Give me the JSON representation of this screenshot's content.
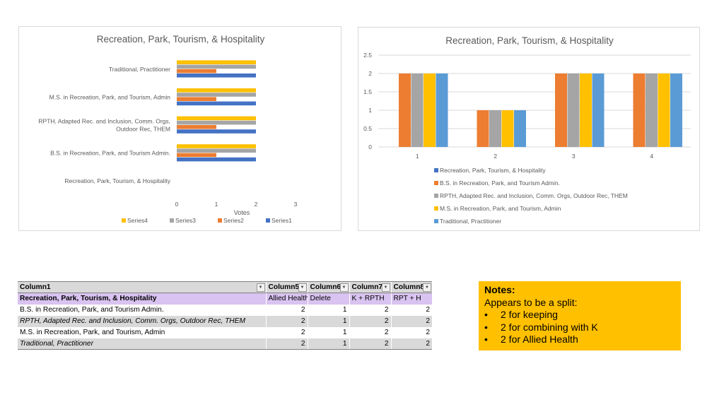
{
  "chart_data": [
    {
      "type": "bar",
      "orientation": "horizontal",
      "title": "Recreation, Park, Tourism, & Hospitality",
      "categories": [
        "Recreation, Park, Tourism, & Hospitality",
        "B.S. in Recreation, Park, and Tourism Admin.",
        "RPTH, Adapted Rec. and Inclusion, Comm. Orgs, Outdoor Rec, THEM",
        "M.S. in Recreation, Park, and Tourism, Admin",
        "Traditional, Practitioner"
      ],
      "category_lines": [
        [
          "Recreation, Park, Tourism, & Hospitality"
        ],
        [
          "B.S. in Recreation, Park, and Tourism Admin."
        ],
        [
          "RPTH, Adapted Rec. and Inclusion, Comm. Orgs,",
          "Outdoor Rec, THEM"
        ],
        [
          "M.S. in Recreation, Park, and Tourism, Admin"
        ],
        [
          "Traditional, Practitioner"
        ]
      ],
      "series": [
        {
          "name": "Series1",
          "color": "#4472c4",
          "values": [
            null,
            2,
            2,
            2,
            2
          ]
        },
        {
          "name": "Series2",
          "color": "#ed7d31",
          "values": [
            null,
            1,
            1,
            1,
            1
          ]
        },
        {
          "name": "Series3",
          "color": "#a5a5a5",
          "values": [
            null,
            2,
            2,
            2,
            2
          ]
        },
        {
          "name": "Series4",
          "color": "#ffc000",
          "values": [
            null,
            2,
            2,
            2,
            2
          ]
        }
      ],
      "xlabel": "Votes",
      "xlim": [
        0,
        3
      ],
      "xticks": [
        "0",
        "1",
        "2",
        "3"
      ],
      "legend": [
        "Series4",
        "Series3",
        "Series2",
        "Series1"
      ],
      "legend_position": "bottom"
    },
    {
      "type": "bar",
      "orientation": "vertical",
      "title": "Recreation, Park, Tourism, & Hospitality",
      "categories": [
        "1",
        "2",
        "3",
        "4"
      ],
      "series": [
        {
          "name": "Recreation, Park, Tourism, & Hospitality",
          "color": "#4472c4",
          "values": [
            null,
            null,
            null,
            null
          ]
        },
        {
          "name": "B.S. in Recreation, Park, and Tourism Admin.",
          "color": "#ed7d31",
          "values": [
            2,
            1,
            2,
            2
          ]
        },
        {
          "name": "RPTH, Adapted Rec. and Inclusion, Comm. Orgs, Outdoor Rec, THEM",
          "color": "#a5a5a5",
          "values": [
            2,
            1,
            2,
            2
          ]
        },
        {
          "name": "M.S. in Recreation, Park, and Tourism, Admin",
          "color": "#ffc000",
          "values": [
            2,
            1,
            2,
            2
          ]
        },
        {
          "name": "Traditional, Practitioner",
          "color": "#5b9bd5",
          "values": [
            2,
            1,
            2,
            2
          ]
        }
      ],
      "ylim": [
        0,
        2.5
      ],
      "yticks": [
        "0",
        "0.5",
        "1",
        "1.5",
        "2",
        "2.5"
      ],
      "grid": true,
      "legend_position": "bottom"
    }
  ],
  "table": {
    "headers": [
      "Column1",
      "Column5",
      "Column6",
      "Column7",
      "Column8"
    ],
    "rows": [
      {
        "style": "purple",
        "cells": [
          "Recreation, Park, Tourism, & Hospitality",
          "Allied Health",
          "Delete",
          "K + RPTH",
          "RPT + H"
        ]
      },
      {
        "style": "white",
        "cells": [
          "B.S. in Recreation, Park, and Tourism Admin.",
          "2",
          "1",
          "2",
          "2"
        ]
      },
      {
        "style": "grey",
        "cells": [
          "RPTH, Adapted Rec. and Inclusion, Comm. Orgs, Outdoor Rec, THEM",
          "2",
          "1",
          "2",
          "2"
        ]
      },
      {
        "style": "white",
        "cells": [
          "M.S. in Recreation, Park, and Tourism, Admin",
          "2",
          "1",
          "2",
          "2"
        ]
      },
      {
        "style": "grey",
        "cells": [
          "Traditional, Practitioner",
          "2",
          "1",
          "2",
          "2"
        ]
      }
    ],
    "filter_icon": "dropdown-arrow-icon"
  },
  "notes": {
    "title": "Notes:",
    "intro": "Appears to be a split:",
    "bullet_symbol": "•",
    "items": [
      "2 for keeping",
      "2 for combining with  K",
      "2 for Allied Health"
    ],
    "background": "#ffc000"
  }
}
